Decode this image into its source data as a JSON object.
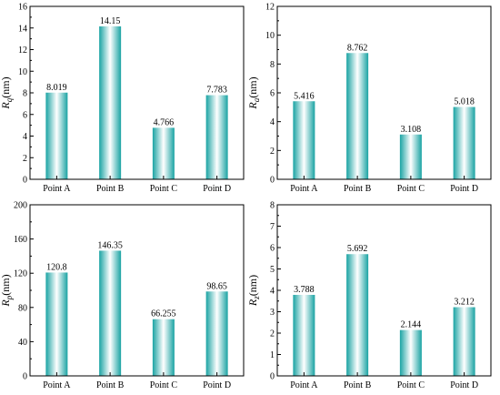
{
  "chart_data": [
    {
      "type": "bar",
      "categories": [
        "Point A",
        "Point B",
        "Point C",
        "Point D"
      ],
      "values": [
        8.019,
        14.15,
        4.766,
        7.783
      ],
      "value_labels": [
        "8.019",
        "14.15",
        "4.766",
        "7.783"
      ],
      "ylabel_symbol": "R",
      "ylabel_subscript": "q",
      "ylabel_unit": "(nm)",
      "ylim": [
        0,
        16
      ],
      "yticks": [
        0,
        2,
        4,
        6,
        8,
        10,
        12,
        14,
        16
      ],
      "grid": false
    },
    {
      "type": "bar",
      "categories": [
        "Point A",
        "Point B",
        "Point C",
        "Point D"
      ],
      "values": [
        5.416,
        8.762,
        3.108,
        5.018
      ],
      "value_labels": [
        "5.416",
        "8.762",
        "3.108",
        "5.018"
      ],
      "ylabel_symbol": "R",
      "ylabel_subscript": "a",
      "ylabel_unit": "(nm)",
      "ylim": [
        0,
        12
      ],
      "yticks": [
        0,
        2,
        4,
        6,
        8,
        10,
        12
      ],
      "grid": false
    },
    {
      "type": "bar",
      "categories": [
        "Point A",
        "Point B",
        "Point C",
        "Point D"
      ],
      "values": [
        120.8,
        146.35,
        66.255,
        98.65
      ],
      "value_labels": [
        "120.8",
        "146.35",
        "66.255",
        "98.65"
      ],
      "ylabel_symbol": "R",
      "ylabel_subscript": "p",
      "ylabel_unit": "(nm)",
      "ylim": [
        0,
        200
      ],
      "yticks": [
        0,
        40,
        80,
        120,
        160,
        200
      ],
      "grid": false
    },
    {
      "type": "bar",
      "categories": [
        "Point A",
        "Point B",
        "Point C",
        "Point D"
      ],
      "values": [
        3.788,
        5.692,
        2.144,
        3.212
      ],
      "value_labels": [
        "3.788",
        "5.692",
        "2.144",
        "3.212"
      ],
      "ylabel_symbol": "R",
      "ylabel_subscript": "z",
      "ylabel_unit": "(nm)",
      "ylim": [
        0,
        8
      ],
      "yticks": [
        0,
        1,
        2,
        3,
        4,
        5,
        6,
        7,
        8
      ],
      "grid": false
    }
  ],
  "colors": {
    "bar_edge": "#1aa3a3",
    "bar_mid": "#ffffff",
    "axis": "#000000"
  }
}
